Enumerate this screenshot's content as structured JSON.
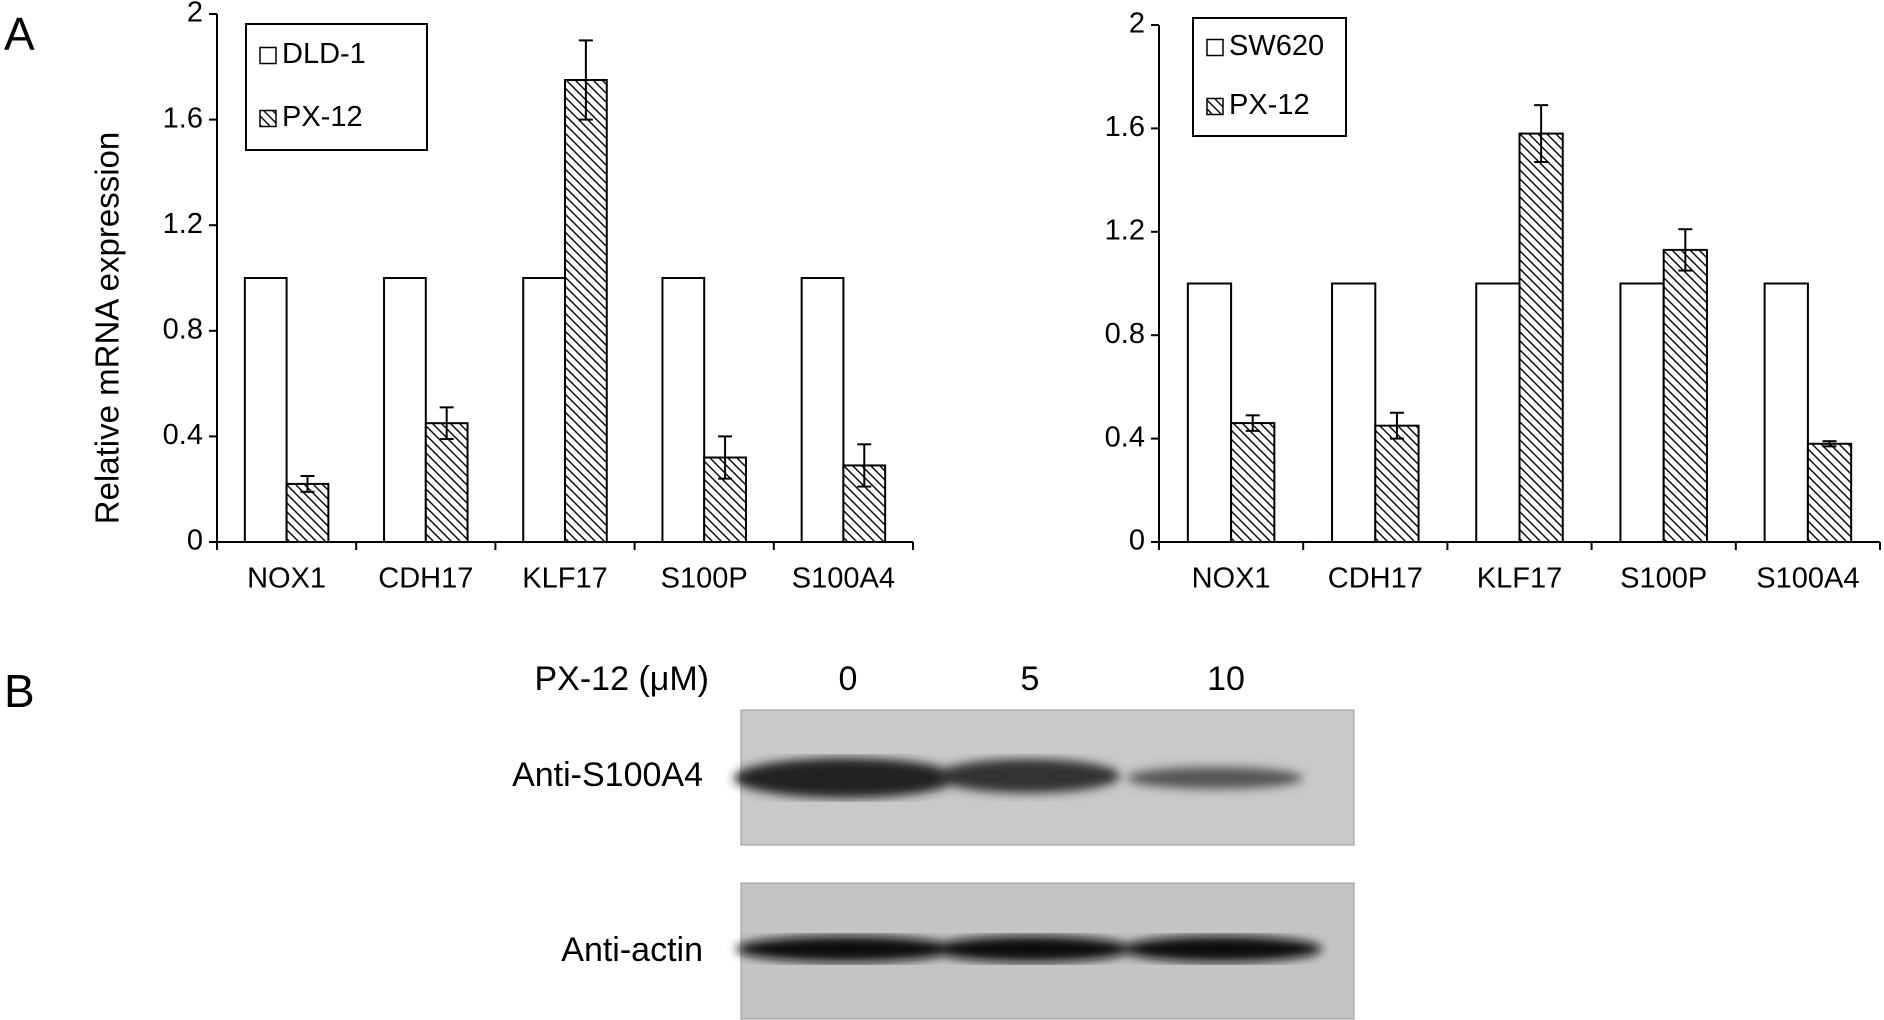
{
  "panel_labels": [
    "A",
    "B"
  ],
  "chart_data": [
    {
      "type": "bar",
      "y_label": "Relative mRNA expression",
      "categories": [
        "NOX1",
        "CDH17",
        "KLF17",
        "S100P",
        "S100A4"
      ],
      "series": [
        {
          "name": "DLD-1",
          "color": "#ffffff",
          "values": [
            1,
            1,
            1,
            1,
            1
          ]
        },
        {
          "name": "PX-12",
          "color": "#000000",
          "hatch": true,
          "values": [
            0.22,
            0.45,
            1.75,
            0.32,
            0.29
          ],
          "errors": [
            0.03,
            0.06,
            0.15,
            0.08,
            0.08
          ]
        }
      ],
      "ylim": [
        0,
        2
      ],
      "yticks": [
        0,
        0.4,
        0.8,
        1.2,
        1.6,
        2
      ],
      "legend": "upper left"
    },
    {
      "type": "bar",
      "categories": [
        "NOX1",
        "CDH17",
        "KLF17",
        "S100P",
        "S100A4"
      ],
      "series": [
        {
          "name": "SW620",
          "color": "#ffffff",
          "values": [
            1,
            1,
            1,
            1,
            1
          ]
        },
        {
          "name": "PX-12",
          "color": "#000000",
          "hatch": true,
          "values": [
            0.46,
            0.45,
            1.58,
            1.13,
            0.38
          ],
          "errors": [
            0.03,
            0.05,
            0.11,
            0.08,
            0.01
          ]
        }
      ],
      "ylim": [
        0,
        2
      ],
      "yticks": [
        0,
        0.4,
        0.8,
        1.2,
        1.6,
        2
      ],
      "legend": "upper left"
    }
  ],
  "blot": {
    "treatment_label": "PX-12 (μM)",
    "doses": [
      "0",
      "5",
      "10"
    ],
    "rows": [
      "Anti-S100A4",
      "Anti-actin"
    ]
  }
}
